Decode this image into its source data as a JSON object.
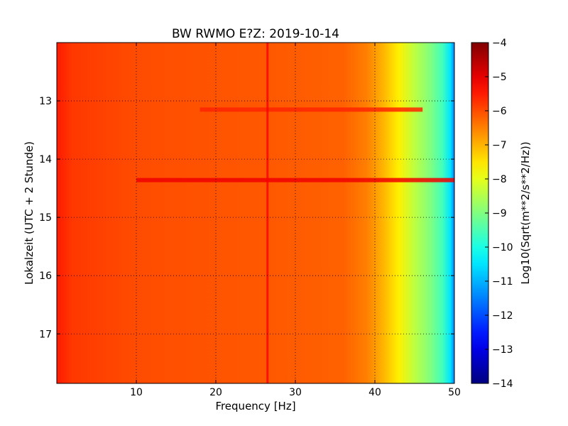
{
  "chart_data": {
    "type": "heatmap",
    "title": "BW RWMO E?Z: 2019-10-14",
    "xlabel": "Frequency [Hz]",
    "ylabel": "Lokalzeit (UTC + 2 Stunde)",
    "xlim": [
      0,
      50
    ],
    "ylim": [
      17.85,
      12.0
    ],
    "x_ticks": [
      10,
      20,
      30,
      40,
      50
    ],
    "y_ticks": [
      13,
      14,
      15,
      16,
      17
    ],
    "grid": true,
    "colormap": "jet",
    "colorbar": {
      "label": "Log10(Sqrt(m**2/s**2/Hz))",
      "range": [
        -14,
        -4
      ],
      "ticks": [
        -4,
        -5,
        -6,
        -7,
        -8,
        -9,
        -10,
        -11,
        -12,
        -13,
        -14
      ]
    },
    "base_profile": {
      "frequency_hz": [
        0,
        2,
        10,
        25,
        36,
        39,
        41,
        43,
        45,
        47,
        48.5,
        49.5,
        50
      ],
      "log10_psd": [
        -5.5,
        -5.8,
        -6.0,
        -6.1,
        -6.2,
        -6.5,
        -7.0,
        -7.6,
        -8.4,
        -9.0,
        -9.6,
        -10.5,
        -11.5
      ]
    },
    "features": [
      {
        "type": "horizontal_band",
        "time": 14.36,
        "from_hz": 10,
        "to_hz": 50,
        "log10_psd": -5.1
      },
      {
        "type": "horizontal_band",
        "time": 13.15,
        "from_hz": 18,
        "to_hz": 46,
        "log10_psd": -5.6
      },
      {
        "type": "vertical_line",
        "frequency_hz": 26.5,
        "from_time": 12.0,
        "to_time": 17.85,
        "log10_psd": -5.2
      }
    ]
  }
}
